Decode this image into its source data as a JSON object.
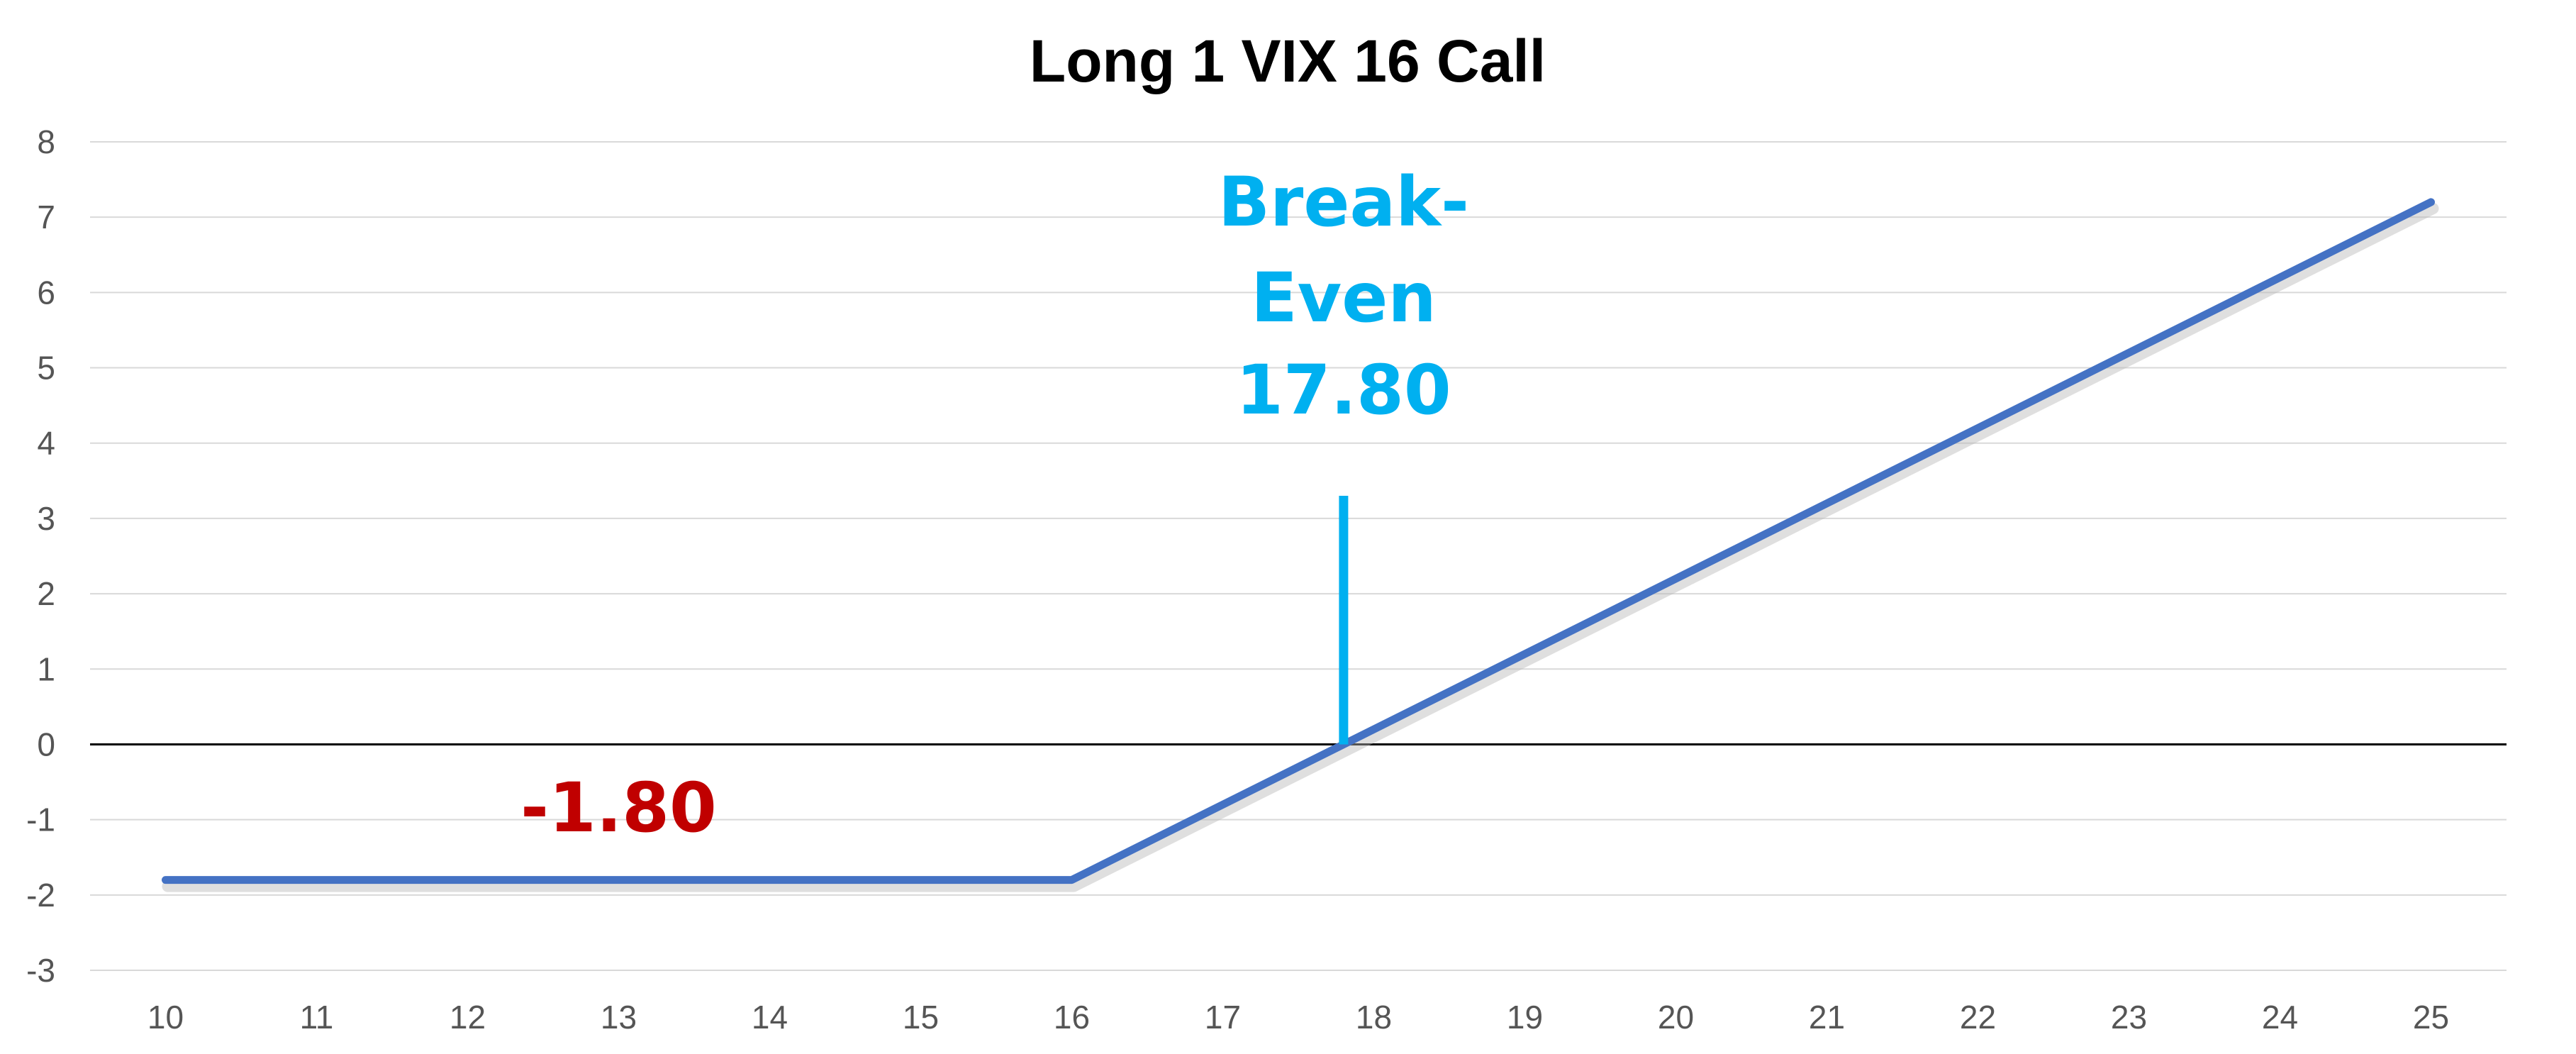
{
  "chart_data": {
    "type": "line",
    "title": "Long 1 VIX 16 Call",
    "xlabel": "",
    "ylabel": "",
    "xlim": [
      10,
      25
    ],
    "ylim": [
      -3,
      8
    ],
    "x_ticks": [
      "10",
      "11",
      "12",
      "13",
      "14",
      "15",
      "16",
      "17",
      "18",
      "19",
      "20",
      "21",
      "22",
      "23",
      "24",
      "25"
    ],
    "y_ticks": [
      "8",
      "7",
      "6",
      "5",
      "4",
      "3",
      "2",
      "1",
      "0",
      "-1",
      "-2",
      "-3"
    ],
    "grid": true,
    "legend": "none",
    "series": [
      {
        "color": "#4472C4",
        "points": [
          {
            "x": 10,
            "y": -1.8
          },
          {
            "x": 16,
            "y": -1.8
          },
          {
            "x": 25,
            "y": 7.2
          }
        ]
      }
    ],
    "annotations": {
      "breakeven": {
        "lines": [
          "Break-",
          "Even",
          "17.80"
        ],
        "x": 17.8,
        "y_top": 3.3,
        "y_bottom": 0,
        "color": "#00B0F0"
      },
      "loss": {
        "text": "-1.80",
        "color": "#C00000"
      }
    }
  }
}
